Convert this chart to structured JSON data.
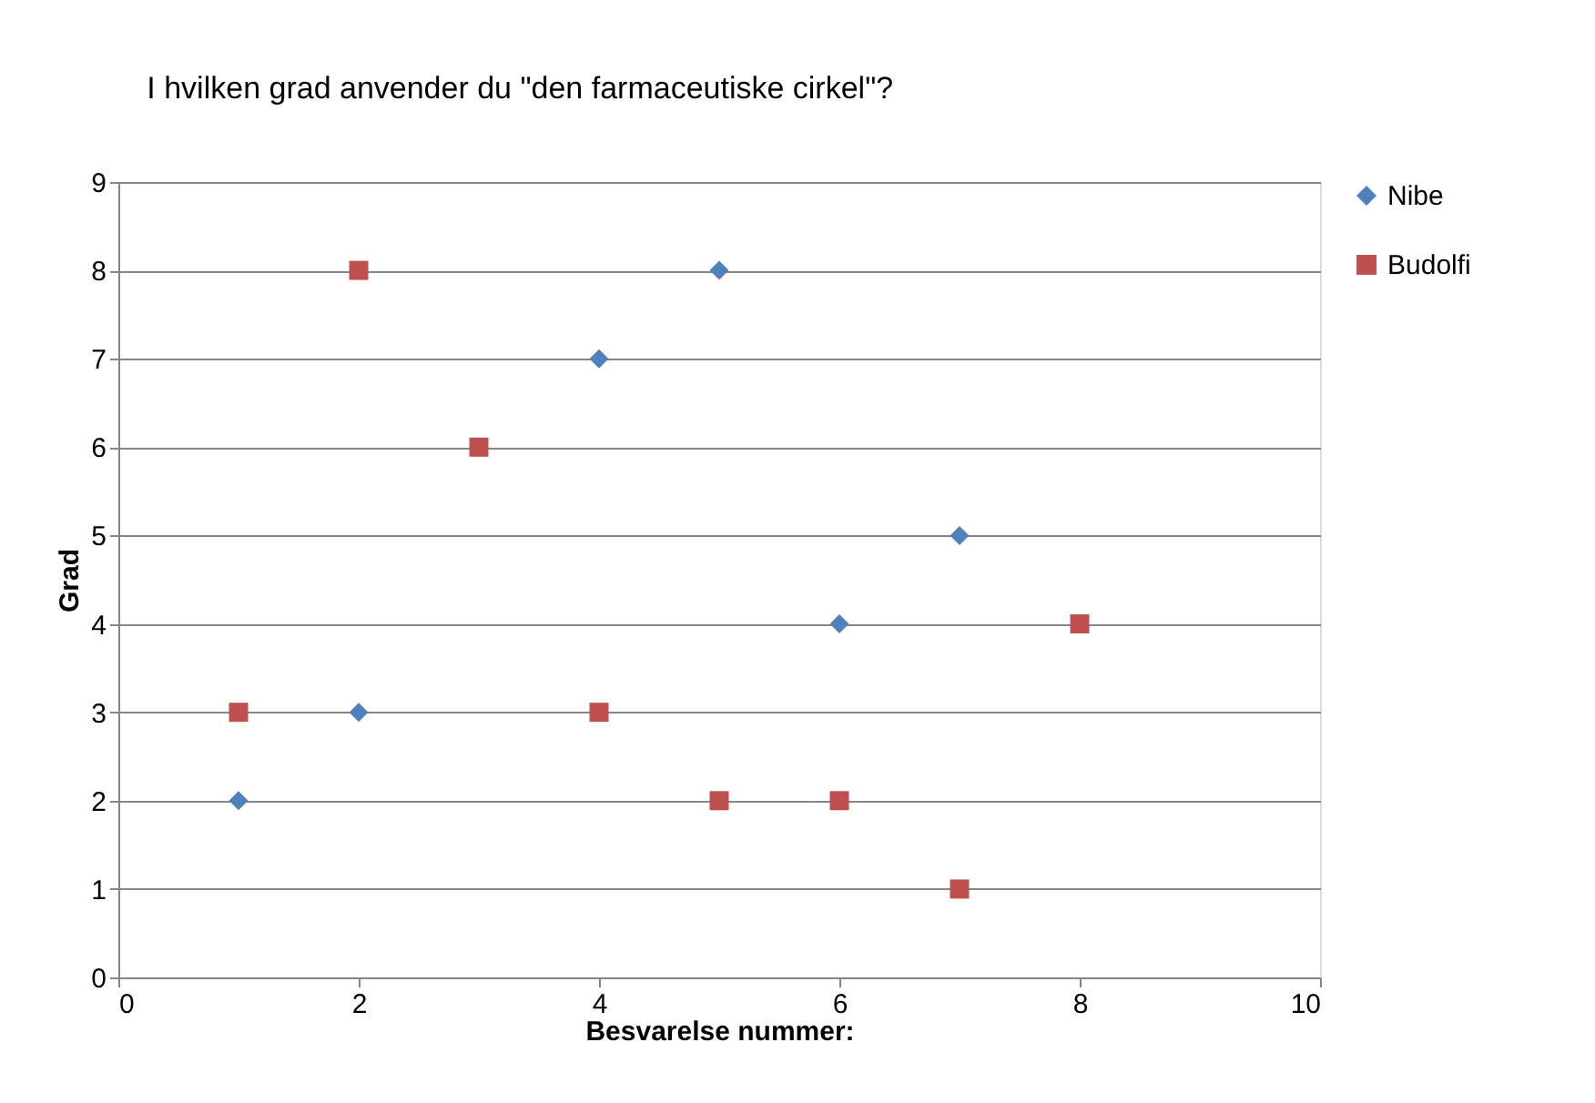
{
  "chart_data": {
    "type": "scatter",
    "title": "I hvilken grad anvender du \"den farmaceutiske cirkel\"?",
    "xlabel": "Besvarelse nummer:",
    "ylabel": "Grad",
    "series": [
      {
        "name": "Nibe",
        "color": "#4f81bd",
        "marker": "diamond",
        "x": [
          1,
          2,
          4,
          5,
          6,
          7
        ],
        "values": [
          2,
          3,
          7,
          8,
          4,
          5
        ]
      },
      {
        "name": "Budolfi",
        "color": "#c0504d",
        "marker": "square",
        "x": [
          1,
          2,
          3,
          4,
          5,
          6,
          7,
          8
        ],
        "values": [
          3,
          8,
          6,
          3,
          2,
          2,
          1,
          4
        ]
      }
    ],
    "xlim": [
      0,
      10
    ],
    "xticks": [
      0,
      2,
      4,
      6,
      8,
      10
    ],
    "ylim": [
      0,
      9
    ],
    "yticks": [
      0,
      1,
      2,
      3,
      4,
      5,
      6,
      7,
      8,
      9
    ],
    "grid": "y",
    "legend": "right"
  }
}
